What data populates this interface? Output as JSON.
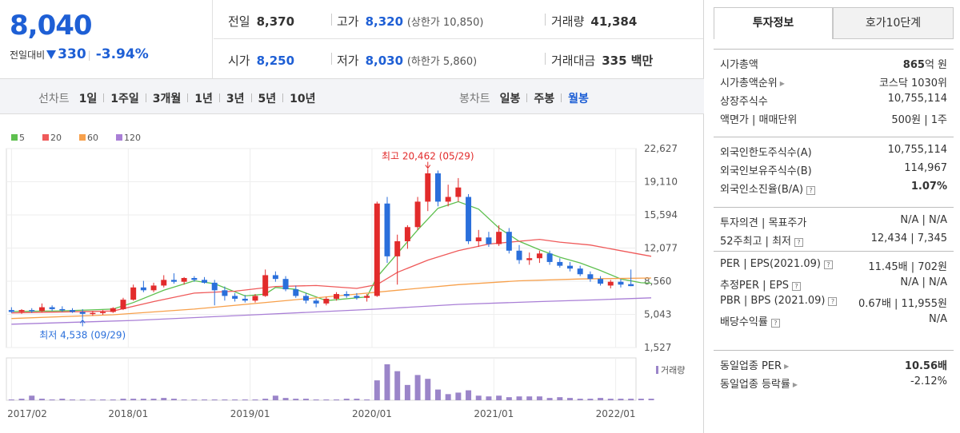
{
  "quote": {
    "price": "8,040",
    "change_label": "전일대비",
    "change_amount": "330",
    "change_percent": "-3.94%",
    "summary": [
      [
        {
          "k": "전일",
          "v": "8,370",
          "blue": false,
          "sub": ""
        },
        {
          "k": "고가",
          "v": "8,320",
          "blue": true,
          "sub": "(상한가 10,850)"
        },
        {
          "k": "거래량",
          "v": "41,384",
          "blue": false,
          "sub": ""
        }
      ],
      [
        {
          "k": "시가",
          "v": "8,250",
          "blue": true,
          "sub": ""
        },
        {
          "k": "저가",
          "v": "8,030",
          "blue": true,
          "sub": "(하한가 5,860)"
        },
        {
          "k": "거래대금",
          "v": "335 백만",
          "blue": false,
          "sub": ""
        }
      ]
    ]
  },
  "toolbar": {
    "line_label": "선차트",
    "line_options": [
      "1일",
      "1주일",
      "3개월",
      "1년",
      "3년",
      "5년",
      "10년"
    ],
    "candle_label": "봉차트",
    "candle_options": [
      "일봉",
      "주봉",
      "월봉"
    ],
    "candle_selected": "월봉"
  },
  "legend": [
    {
      "label": "5",
      "color": "#5ec04f"
    },
    {
      "label": "20",
      "color": "#ef5a5a"
    },
    {
      "label": "60",
      "color": "#f7a04b"
    },
    {
      "label": "120",
      "color": "#a97fd6"
    }
  ],
  "chart_data": {
    "type": "candlestick",
    "y_ticks": [
      "22,627",
      "19,110",
      "15,594",
      "12,077",
      "8,560",
      "5,043",
      "1,527"
    ],
    "ylim": [
      1527,
      22627
    ],
    "x_ticks": [
      "2017/02",
      "2018/01",
      "2019/01",
      "2020/01",
      "2021/01",
      "2022/01"
    ],
    "max_annotation": "최고 20,462 (05/29)",
    "min_annotation": "최저 4,538 (09/29)",
    "volume_label": "거래량",
    "candles": [
      {
        "o": 5500,
        "h": 5800,
        "l": 5200,
        "c": 5300
      },
      {
        "o": 5300,
        "h": 5600,
        "l": 5100,
        "c": 5500
      },
      {
        "o": 5500,
        "h": 5700,
        "l": 5200,
        "c": 5400
      },
      {
        "o": 5400,
        "h": 6200,
        "l": 5300,
        "c": 5800
      },
      {
        "o": 5800,
        "h": 6000,
        "l": 5400,
        "c": 5600
      },
      {
        "o": 5600,
        "h": 5900,
        "l": 5300,
        "c": 5500
      },
      {
        "o": 5500,
        "h": 5700,
        "l": 5200,
        "c": 5300
      },
      {
        "o": 5300,
        "h": 5600,
        "l": 4538,
        "c": 5100
      },
      {
        "o": 5100,
        "h": 5400,
        "l": 4900,
        "c": 5200
      },
      {
        "o": 5200,
        "h": 5500,
        "l": 5000,
        "c": 5300
      },
      {
        "o": 5300,
        "h": 5800,
        "l": 5200,
        "c": 5700
      },
      {
        "o": 5600,
        "h": 6800,
        "l": 5500,
        "c": 6600
      },
      {
        "o": 6600,
        "h": 8200,
        "l": 6500,
        "c": 7900
      },
      {
        "o": 7900,
        "h": 8600,
        "l": 7400,
        "c": 7600
      },
      {
        "o": 7600,
        "h": 8400,
        "l": 7400,
        "c": 8100
      },
      {
        "o": 8100,
        "h": 9200,
        "l": 7900,
        "c": 8700
      },
      {
        "o": 8700,
        "h": 9400,
        "l": 8300,
        "c": 8500
      },
      {
        "o": 8500,
        "h": 9000,
        "l": 8200,
        "c": 8900
      },
      {
        "o": 8900,
        "h": 9100,
        "l": 8500,
        "c": 8700
      },
      {
        "o": 8700,
        "h": 9000,
        "l": 8300,
        "c": 8400
      },
      {
        "o": 8400,
        "h": 8700,
        "l": 6000,
        "c": 7600
      },
      {
        "o": 7600,
        "h": 8000,
        "l": 6500,
        "c": 7000
      },
      {
        "o": 7000,
        "h": 7300,
        "l": 6400,
        "c": 6700
      },
      {
        "o": 6700,
        "h": 7100,
        "l": 6300,
        "c": 6500
      },
      {
        "o": 6500,
        "h": 7200,
        "l": 6300,
        "c": 7000
      },
      {
        "o": 7000,
        "h": 9800,
        "l": 6900,
        "c": 9200
      },
      {
        "o": 9200,
        "h": 9600,
        "l": 8500,
        "c": 8800
      },
      {
        "o": 8800,
        "h": 9100,
        "l": 7500,
        "c": 7700
      },
      {
        "o": 7700,
        "h": 8100,
        "l": 6800,
        "c": 7000
      },
      {
        "o": 7000,
        "h": 7300,
        "l": 6200,
        "c": 6500
      },
      {
        "o": 6500,
        "h": 6700,
        "l": 5800,
        "c": 6200
      },
      {
        "o": 6200,
        "h": 6900,
        "l": 6000,
        "c": 6700
      },
      {
        "o": 6700,
        "h": 7400,
        "l": 6500,
        "c": 7200
      },
      {
        "o": 7200,
        "h": 7500,
        "l": 6800,
        "c": 7000
      },
      {
        "o": 7000,
        "h": 7300,
        "l": 6600,
        "c": 6800
      },
      {
        "o": 6800,
        "h": 7200,
        "l": 6400,
        "c": 7000
      },
      {
        "o": 7000,
        "h": 17000,
        "l": 6900,
        "c": 16800
      },
      {
        "o": 16800,
        "h": 17500,
        "l": 10500,
        "c": 11200
      },
      {
        "o": 11200,
        "h": 13500,
        "l": 8200,
        "c": 12800
      },
      {
        "o": 12800,
        "h": 14500,
        "l": 12000,
        "c": 14300
      },
      {
        "o": 14300,
        "h": 17500,
        "l": 14000,
        "c": 17000
      },
      {
        "o": 17000,
        "h": 20462,
        "l": 16000,
        "c": 20000
      },
      {
        "o": 20000,
        "h": 20300,
        "l": 16500,
        "c": 17000
      },
      {
        "o": 17000,
        "h": 18800,
        "l": 16500,
        "c": 17500
      },
      {
        "o": 17500,
        "h": 19500,
        "l": 17000,
        "c": 18500
      },
      {
        "o": 17500,
        "h": 17800,
        "l": 12500,
        "c": 12800
      },
      {
        "o": 12800,
        "h": 14000,
        "l": 12200,
        "c": 13200
      },
      {
        "o": 13200,
        "h": 13800,
        "l": 12200,
        "c": 12500
      },
      {
        "o": 12500,
        "h": 14500,
        "l": 12300,
        "c": 13800
      },
      {
        "o": 13800,
        "h": 14200,
        "l": 11500,
        "c": 11800
      },
      {
        "o": 11800,
        "h": 12400,
        "l": 10400,
        "c": 10800
      },
      {
        "o": 10800,
        "h": 11600,
        "l": 10300,
        "c": 11000
      },
      {
        "o": 11000,
        "h": 11800,
        "l": 10500,
        "c": 11500
      },
      {
        "o": 11500,
        "h": 11800,
        "l": 10300,
        "c": 10600
      },
      {
        "o": 10600,
        "h": 11000,
        "l": 10000,
        "c": 10200
      },
      {
        "o": 10200,
        "h": 10600,
        "l": 9600,
        "c": 9900
      },
      {
        "o": 9900,
        "h": 10200,
        "l": 9100,
        "c": 9300
      },
      {
        "o": 9300,
        "h": 9600,
        "l": 8500,
        "c": 8800
      },
      {
        "o": 8800,
        "h": 9100,
        "l": 8100,
        "c": 8300
      },
      {
        "o": 8100,
        "h": 8700,
        "l": 7800,
        "c": 8500
      },
      {
        "o": 8500,
        "h": 8800,
        "l": 7900,
        "c": 8200
      },
      {
        "o": 8250,
        "h": 9800,
        "l": 8030,
        "c": 8040
      }
    ],
    "volume": [
      1,
      2,
      6,
      2,
      1,
      2,
      1,
      1,
      1,
      1,
      1,
      2,
      2,
      2,
      2,
      3,
      2,
      1,
      1,
      1,
      1,
      1,
      1,
      1,
      1,
      2,
      6,
      3,
      2,
      2,
      1,
      1,
      1,
      2,
      2,
      1,
      26,
      47,
      38,
      20,
      33,
      28,
      14,
      8,
      10,
      13,
      6,
      5,
      6,
      4,
      5,
      5,
      5,
      3,
      4,
      3,
      2,
      2,
      3,
      2,
      2,
      2,
      2,
      2
    ],
    "ma": {
      "5": [
        [
          0,
          5350
        ],
        [
          5,
          5420
        ],
        [
          10,
          5600
        ],
        [
          12,
          6300
        ],
        [
          15,
          7600
        ],
        [
          18,
          8600
        ],
        [
          20,
          8300
        ],
        [
          23,
          7000
        ],
        [
          25,
          7200
        ],
        [
          26,
          7900
        ],
        [
          28,
          7700
        ],
        [
          31,
          6500
        ],
        [
          35,
          6900
        ],
        [
          36,
          9000
        ],
        [
          38,
          11500
        ],
        [
          40,
          14000
        ],
        [
          42,
          16300
        ],
        [
          44,
          17000
        ],
        [
          46,
          16200
        ],
        [
          48,
          14200
        ],
        [
          50,
          12800
        ],
        [
          52,
          11900
        ],
        [
          54,
          11100
        ],
        [
          56,
          10500
        ],
        [
          58,
          9700
        ],
        [
          60,
          8800
        ],
        [
          62,
          8400
        ],
        [
          63,
          8350
        ]
      ],
      "20": [
        [
          0,
          5200
        ],
        [
          10,
          5400
        ],
        [
          14,
          6400
        ],
        [
          18,
          7300
        ],
        [
          22,
          7500
        ],
        [
          26,
          8000
        ],
        [
          30,
          8100
        ],
        [
          34,
          7800
        ],
        [
          36,
          8200
        ],
        [
          38,
          9500
        ],
        [
          41,
          10800
        ],
        [
          44,
          11800
        ],
        [
          47,
          12500
        ],
        [
          50,
          12800
        ],
        [
          52,
          13000
        ],
        [
          54,
          12700
        ],
        [
          57,
          12400
        ],
        [
          60,
          11800
        ],
        [
          63,
          11200
        ]
      ],
      "60": [
        [
          0,
          4600
        ],
        [
          10,
          5000
        ],
        [
          18,
          5600
        ],
        [
          26,
          6400
        ],
        [
          34,
          7200
        ],
        [
          38,
          7600
        ],
        [
          44,
          8200
        ],
        [
          50,
          8600
        ],
        [
          56,
          8800
        ],
        [
          63,
          8900
        ]
      ],
      "120": [
        [
          0,
          4000
        ],
        [
          12,
          4400
        ],
        [
          24,
          5000
        ],
        [
          36,
          5600
        ],
        [
          44,
          6100
        ],
        [
          52,
          6400
        ],
        [
          58,
          6600
        ],
        [
          63,
          6800
        ]
      ]
    }
  },
  "invest": {
    "tabs": [
      "투자정보",
      "호가10단계"
    ],
    "sections": [
      [
        {
          "k": "시가총액",
          "v": "865억 원",
          "bold": "865",
          "chev": false,
          "q": false
        },
        {
          "k": "시가총액순위",
          "v": "코스닥 1030위",
          "chev": true,
          "q": false
        },
        {
          "k": "상장주식수",
          "v": "10,755,114",
          "chev": false,
          "q": false
        },
        {
          "k": "액면가 | 매매단위",
          "v": "500원 | 1주",
          "chev": false,
          "q": false
        }
      ],
      [
        {
          "k": "외국인한도주식수(A)",
          "v": "10,755,114",
          "chev": false,
          "q": false
        },
        {
          "k": "외국인보유주식수(B)",
          "v": "114,967",
          "chev": false,
          "q": false
        },
        {
          "k": "외국인소진율(B/A)",
          "v": "1.07%",
          "chev": false,
          "q": true,
          "strong": true
        }
      ],
      [
        {
          "k": "투자의견 | 목표주가",
          "v": "N/A | N/A",
          "chev": false,
          "q": false
        },
        {
          "k": "52주최고 | 최저",
          "v": "12,434 | 7,345",
          "chev": false,
          "q": true
        }
      ],
      [
        {
          "k": "PER | EPS(2021.09)",
          "v": "11.45배 | 702원",
          "chev": false,
          "q": true
        },
        {
          "k": "추정PER | EPS",
          "v": "N/A | N/A",
          "chev": false,
          "q": true
        },
        {
          "k": "PBR | BPS (2021.09)",
          "v": "0.67배 | 11,955원",
          "chev": false,
          "q": true
        },
        {
          "k": "배당수익률",
          "v": "N/A",
          "chev": false,
          "q": true
        }
      ],
      [
        {
          "k": "동일업종 PER",
          "v": "10.56배",
          "chev": true,
          "q": false,
          "strong": true
        },
        {
          "k": "동일업종 등락률",
          "v": "-2.12%",
          "chev": true,
          "q": false,
          "blue": true
        }
      ]
    ]
  }
}
